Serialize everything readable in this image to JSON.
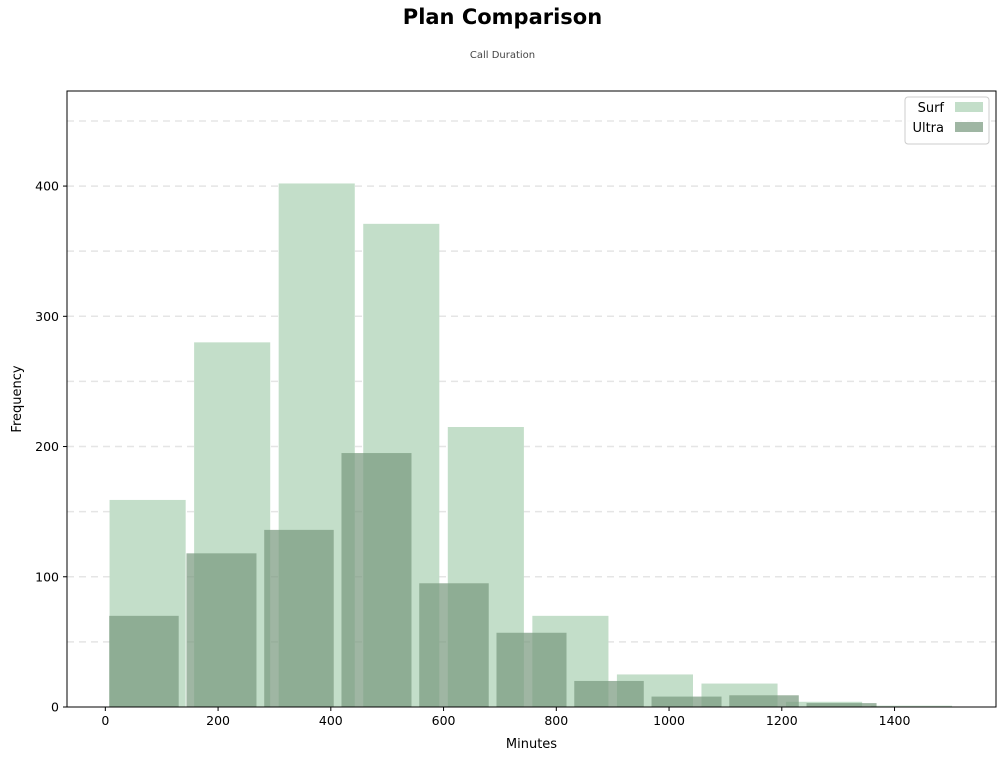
{
  "chart_data": {
    "type": "bar",
    "title": "Plan Comparison",
    "subtitle": "Call Duration",
    "xlabel": "Minutes",
    "ylabel": "Frequency",
    "xlim": [
      -68,
      1580
    ],
    "ylim": [
      0,
      473
    ],
    "xticks": [
      0,
      200,
      400,
      600,
      800,
      1000,
      1200,
      1400
    ],
    "yticks": [
      0,
      100,
      200,
      300,
      400
    ],
    "grid": "horizontal dashed",
    "legend_position": "top-right",
    "series": [
      {
        "name": "Surf",
        "color": "#c3dec9",
        "bars": [
          {
            "x0": 0,
            "x1": 150,
            "value": 159
          },
          {
            "x0": 150,
            "x1": 300,
            "value": 280
          },
          {
            "x0": 300,
            "x1": 450,
            "value": 402
          },
          {
            "x0": 450,
            "x1": 600,
            "value": 371
          },
          {
            "x0": 600,
            "x1": 750,
            "value": 215
          },
          {
            "x0": 750,
            "x1": 900,
            "value": 70
          },
          {
            "x0": 900,
            "x1": 1050,
            "value": 25
          },
          {
            "x0": 1050,
            "x1": 1200,
            "value": 18
          },
          {
            "x0": 1200,
            "x1": 1350,
            "value": 4
          },
          {
            "x0": 1350,
            "x1": 1510,
            "value": 1
          }
        ]
      },
      {
        "name": "Ultra",
        "color": "#7a9a7f",
        "bars": [
          {
            "x0": 0,
            "x1": 137,
            "value": 70
          },
          {
            "x0": 137,
            "x1": 275,
            "value": 118
          },
          {
            "x0": 275,
            "x1": 412,
            "value": 136
          },
          {
            "x0": 412,
            "x1": 550,
            "value": 195
          },
          {
            "x0": 550,
            "x1": 687,
            "value": 95
          },
          {
            "x0": 687,
            "x1": 825,
            "value": 57
          },
          {
            "x0": 825,
            "x1": 962,
            "value": 20
          },
          {
            "x0": 962,
            "x1": 1100,
            "value": 8
          },
          {
            "x0": 1100,
            "x1": 1237,
            "value": 9
          },
          {
            "x0": 1237,
            "x1": 1375,
            "value": 3
          }
        ]
      }
    ]
  }
}
